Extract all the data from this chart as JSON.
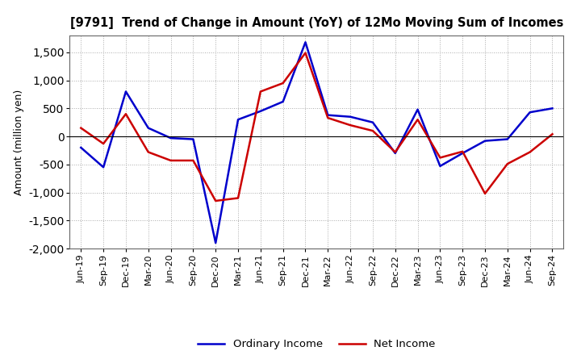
{
  "title": "[9791]  Trend of Change in Amount (YoY) of 12Mo Moving Sum of Incomes",
  "ylabel": "Amount (million yen)",
  "x_labels": [
    "Jun-19",
    "Sep-19",
    "Dec-19",
    "Mar-20",
    "Jun-20",
    "Sep-20",
    "Dec-20",
    "Mar-21",
    "Jun-21",
    "Sep-21",
    "Dec-21",
    "Mar-22",
    "Jun-22",
    "Sep-22",
    "Dec-22",
    "Mar-23",
    "Jun-23",
    "Sep-23",
    "Dec-23",
    "Mar-24",
    "Jun-24",
    "Sep-24"
  ],
  "ordinary_income": [
    -200,
    -550,
    800,
    150,
    -30,
    -50,
    -1900,
    300,
    450,
    620,
    1680,
    380,
    350,
    250,
    -300,
    480,
    -530,
    -300,
    -80,
    -50,
    430,
    500
  ],
  "net_income": [
    150,
    -130,
    400,
    -280,
    -430,
    -430,
    -1150,
    -1100,
    800,
    950,
    1490,
    330,
    200,
    100,
    -280,
    300,
    -380,
    -270,
    -1020,
    -490,
    -280,
    40
  ],
  "ylim": [
    -2000,
    1800
  ],
  "yticks": [
    -2000,
    -1500,
    -1000,
    -500,
    0,
    500,
    1000,
    1500
  ],
  "ordinary_color": "#0000cc",
  "net_color": "#cc0000",
  "background_color": "#ffffff",
  "grid_color": "#aaaaaa",
  "legend_ordinary": "Ordinary Income",
  "legend_net": "Net Income"
}
